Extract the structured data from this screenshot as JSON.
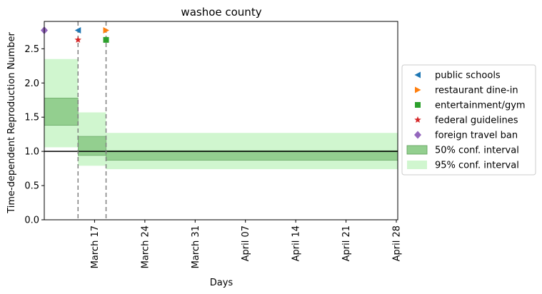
{
  "chart_data": {
    "type": "step-interval",
    "title": "washoe county",
    "xlabel": "Days",
    "ylabel": "Time-dependent Reproduction Number",
    "x_start_day": 0,
    "x_end_day": 49.2,
    "x_origin_note": "day 0 = March 10",
    "xticks": [
      {
        "day": 7,
        "label": "March 17"
      },
      {
        "day": 14,
        "label": "March 24"
      },
      {
        "day": 21,
        "label": "March 31"
      },
      {
        "day": 28,
        "label": "April 07"
      },
      {
        "day": 35,
        "label": "April 14"
      },
      {
        "day": 42,
        "label": "April 21"
      },
      {
        "day": 49,
        "label": "April 28"
      }
    ],
    "ylim": [
      0,
      2.9
    ],
    "yticks": [
      {
        "value": 0.0,
        "label": "0.0"
      },
      {
        "value": 0.5,
        "label": "0.5"
      },
      {
        "value": 1.0,
        "label": "1.0"
      },
      {
        "value": 1.5,
        "label": "1.5"
      },
      {
        "value": 2.0,
        "label": "2.0"
      },
      {
        "value": 2.5,
        "label": "2.5"
      }
    ],
    "reference_line": 1.0,
    "segments": [
      {
        "start": 0,
        "end": 4.7,
        "ci50": [
          1.38,
          1.78
        ],
        "ci95": [
          1.06,
          2.35
        ]
      },
      {
        "start": 4.7,
        "end": 8.6,
        "ci50": [
          0.94,
          1.22
        ],
        "ci95": [
          0.79,
          1.57
        ]
      },
      {
        "start": 8.6,
        "end": 49.2,
        "ci50": [
          0.87,
          1.01
        ],
        "ci95": [
          0.74,
          1.27
        ]
      }
    ],
    "interventions": [
      {
        "name": "public schools",
        "day": 4.7,
        "y": 2.77,
        "marker": "triangle-left",
        "color": "#1f77b4"
      },
      {
        "name": "restaurant dine-in",
        "day": 8.6,
        "y": 2.77,
        "marker": "triangle-right",
        "color": "#ff7f0e"
      },
      {
        "name": "entertainment/gym",
        "day": 8.6,
        "y": 2.63,
        "marker": "square",
        "color": "#2ca02c"
      },
      {
        "name": "federal guidelines",
        "day": 4.7,
        "y": 2.63,
        "marker": "star",
        "color": "#d62728"
      },
      {
        "name": "foreign travel ban",
        "day": 0,
        "y": 2.77,
        "marker": "diamond",
        "color": "#9467bd"
      }
    ],
    "vlines": [
      4.7,
      8.6
    ],
    "legend": {
      "placement": "right",
      "ci50_label": "50% conf. interval",
      "ci95_label": "95% conf. interval"
    },
    "colors": {
      "ci50_fill": "#93cf8f",
      "ci50_edge": "#5e9e5a",
      "ci95_fill": "#d0f6cf",
      "vline": "#808080",
      "refline": "#000000"
    }
  }
}
